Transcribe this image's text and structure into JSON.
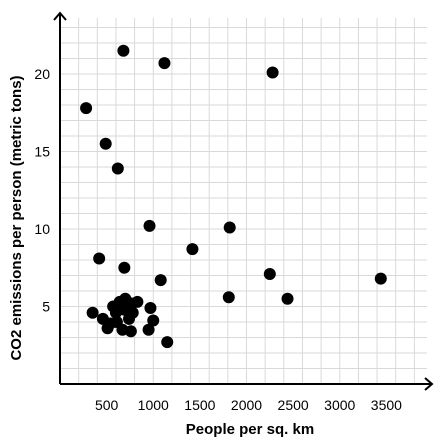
{
  "chart_data": {
    "type": "scatter",
    "title": "",
    "xlabel": "People per sq. km",
    "ylabel": "CO2 emissions per person (metric tons)",
    "xlim": [
      0,
      4000
    ],
    "ylim": [
      0,
      24
    ],
    "x_ticks": [
      500,
      1000,
      1500,
      2000,
      2500,
      3000,
      3500
    ],
    "y_ticks": [
      5,
      10,
      15,
      20
    ],
    "x_grid_step": 200,
    "y_grid_step": 1,
    "grid": true,
    "point_color": "#000000",
    "points": [
      {
        "x": 680,
        "y": 21.5
      },
      {
        "x": 1120,
        "y": 20.7
      },
      {
        "x": 2280,
        "y": 20.1
      },
      {
        "x": 280,
        "y": 17.8
      },
      {
        "x": 490,
        "y": 15.5
      },
      {
        "x": 620,
        "y": 13.9
      },
      {
        "x": 960,
        "y": 10.2
      },
      {
        "x": 1820,
        "y": 10.1
      },
      {
        "x": 1420,
        "y": 8.7
      },
      {
        "x": 420,
        "y": 8.1
      },
      {
        "x": 690,
        "y": 7.5
      },
      {
        "x": 2250,
        "y": 7.1
      },
      {
        "x": 3440,
        "y": 6.8
      },
      {
        "x": 1080,
        "y": 6.7
      },
      {
        "x": 1810,
        "y": 5.6
      },
      {
        "x": 2440,
        "y": 5.5
      },
      {
        "x": 570,
        "y": 5.0
      },
      {
        "x": 640,
        "y": 5.3
      },
      {
        "x": 700,
        "y": 5.5
      },
      {
        "x": 760,
        "y": 5.2
      },
      {
        "x": 830,
        "y": 5.3
      },
      {
        "x": 350,
        "y": 4.6
      },
      {
        "x": 600,
        "y": 4.6
      },
      {
        "x": 690,
        "y": 4.8
      },
      {
        "x": 780,
        "y": 4.6
      },
      {
        "x": 970,
        "y": 4.9
      },
      {
        "x": 460,
        "y": 4.2
      },
      {
        "x": 540,
        "y": 3.9
      },
      {
        "x": 610,
        "y": 4.0
      },
      {
        "x": 740,
        "y": 4.2
      },
      {
        "x": 1000,
        "y": 4.1
      },
      {
        "x": 510,
        "y": 3.6
      },
      {
        "x": 670,
        "y": 3.5
      },
      {
        "x": 760,
        "y": 3.4
      },
      {
        "x": 950,
        "y": 3.5
      },
      {
        "x": 1150,
        "y": 2.7
      }
    ]
  }
}
